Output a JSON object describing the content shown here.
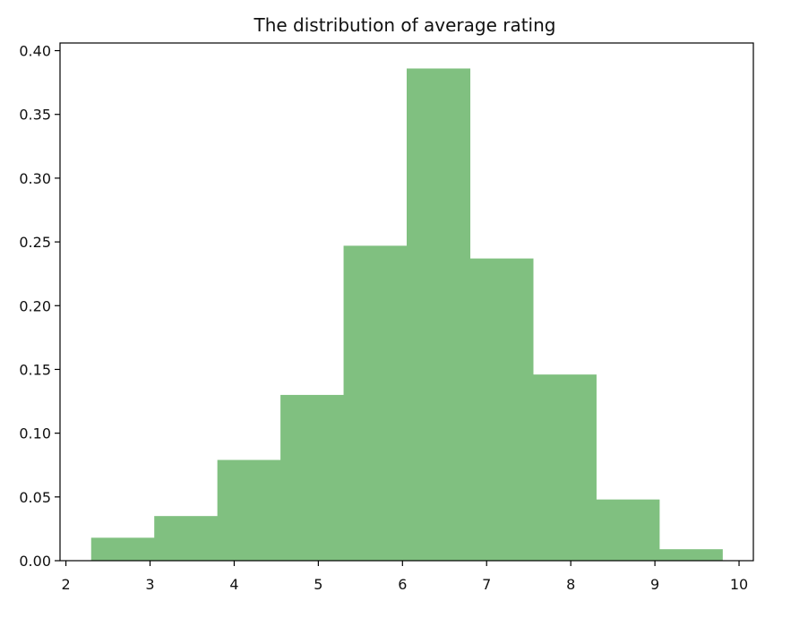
{
  "chart_data": {
    "type": "histogram",
    "title": "The distribution of average rating",
    "xlabel": "",
    "ylabel": "",
    "xlim": [
      1.93,
      10.17
    ],
    "ylim": [
      0,
      0.406
    ],
    "x_ticks": [
      2,
      3,
      4,
      5,
      6,
      7,
      8,
      9,
      10
    ],
    "x_tick_labels": [
      "2",
      "3",
      "4",
      "5",
      "6",
      "7",
      "8",
      "9",
      "10"
    ],
    "y_ticks": [
      0.0,
      0.05,
      0.1,
      0.15,
      0.2,
      0.25,
      0.3,
      0.35,
      0.4
    ],
    "y_tick_labels": [
      "0.00",
      "0.05",
      "0.10",
      "0.15",
      "0.20",
      "0.25",
      "0.30",
      "0.35",
      "0.40"
    ],
    "bins": [
      {
        "start": 2.3,
        "end": 3.05,
        "value": 0.018
      },
      {
        "start": 3.05,
        "end": 3.8,
        "value": 0.035
      },
      {
        "start": 3.8,
        "end": 4.55,
        "value": 0.079
      },
      {
        "start": 4.55,
        "end": 5.3,
        "value": 0.13
      },
      {
        "start": 5.3,
        "end": 6.05,
        "value": 0.247
      },
      {
        "start": 6.05,
        "end": 6.8,
        "value": 0.386
      },
      {
        "start": 6.8,
        "end": 7.55,
        "value": 0.237
      },
      {
        "start": 7.55,
        "end": 8.3,
        "value": 0.146
      },
      {
        "start": 8.3,
        "end": 9.05,
        "value": 0.048
      },
      {
        "start": 9.05,
        "end": 9.8,
        "value": 0.009
      }
    ],
    "bar_color": "#80c080",
    "grid": false,
    "legend": "none"
  }
}
